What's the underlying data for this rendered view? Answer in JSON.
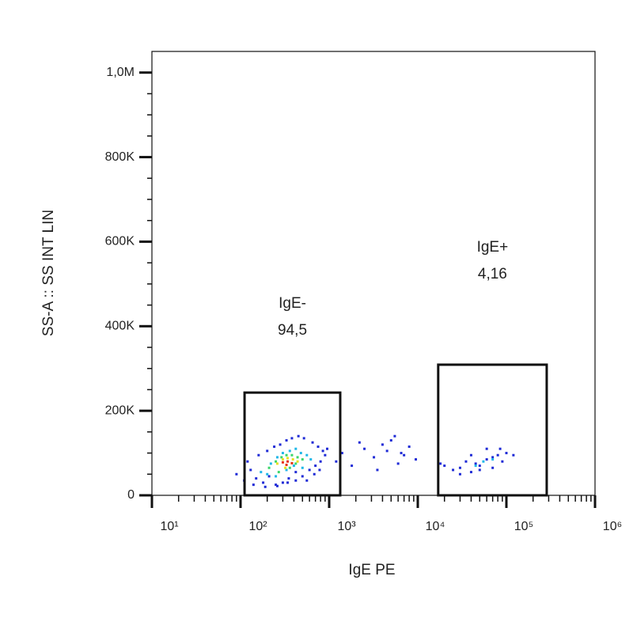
{
  "chart_data": {
    "type": "scatter",
    "xlabel": "IgE PE",
    "ylabel": "SS-A :: SS INT LIN",
    "xscale": "log",
    "xlim": [
      10,
      1000000
    ],
    "ylim": [
      0,
      1050000
    ],
    "xticks": [
      {
        "value": 10,
        "label": "10¹"
      },
      {
        "value": 100,
        "label": "10²"
      },
      {
        "value": 1000,
        "label": "10³"
      },
      {
        "value": 10000,
        "label": "10⁴"
      },
      {
        "value": 100000,
        "label": "10⁵"
      },
      {
        "value": 1000000,
        "label": "10⁶"
      }
    ],
    "yticks": [
      0,
      {
        "value": 200000,
        "label": "200K"
      },
      {
        "value": 400000,
        "label": "400K"
      },
      {
        "value": 600000,
        "label": "600K"
      },
      {
        "value": 800000,
        "label": "800K"
      },
      {
        "value": 1000000,
        "label": "1,0M"
      }
    ],
    "gates": [
      {
        "name": "IgE-",
        "value": 94.5,
        "value_label": "94,5",
        "x": [
          111,
          1333
        ],
        "y": [
          0,
          243000
        ]
      },
      {
        "name": "IgE+",
        "value": 4.16,
        "value_label": "4,16",
        "x": [
          17000,
          285000
        ],
        "y": [
          0,
          309000
        ]
      }
    ],
    "series": [
      {
        "color": "#1f2bd6",
        "x": [
          90,
          110,
          130,
          150,
          180,
          210,
          250,
          300,
          350,
          420,
          500,
          600,
          700,
          800,
          900,
          950,
          120,
          160,
          200,
          240,
          280,
          330,
          380,
          450,
          520,
          650,
          750,
          850,
          140,
          190,
          260,
          340,
          420,
          560,
          680,
          780,
          1400,
          1800,
          2500,
          3200,
          4000,
          5000,
          6500,
          8000,
          9500,
          3500,
          5500,
          7000,
          1200,
          2200,
          4500,
          6000,
          20000,
          25000,
          30000,
          35000,
          40000,
          45000,
          50000,
          60000,
          70000,
          80000,
          90000,
          100000,
          120000,
          30000,
          50000,
          70000,
          40000,
          60000,
          85000,
          18000
        ],
        "values": [
          50000,
          35000,
          60000,
          40000,
          30000,
          45000,
          25000,
          30000,
          40000,
          35000,
          45000,
          60000,
          70000,
          80000,
          95000,
          110000,
          80000,
          95000,
          105000,
          115000,
          120000,
          130000,
          135000,
          140000,
          135000,
          125000,
          115000,
          105000,
          25000,
          20000,
          22000,
          30000,
          55000,
          35000,
          50000,
          60000,
          100000,
          70000,
          110000,
          90000,
          120000,
          130000,
          100000,
          115000,
          85000,
          60000,
          140000,
          95000,
          80000,
          125000,
          105000,
          75000,
          70000,
          60000,
          65000,
          80000,
          55000,
          75000,
          70000,
          85000,
          90000,
          95000,
          80000,
          100000,
          95000,
          50000,
          60000,
          65000,
          95000,
          110000,
          110000,
          75000
        ]
      },
      {
        "color": "#1fb7e8",
        "x": [
          170,
          220,
          260,
          300,
          360,
          420,
          480,
          560,
          620,
          200,
          250,
          330,
          400,
          500,
          55000,
          70000,
          45000
        ],
        "values": [
          55000,
          75000,
          90000,
          100000,
          105000,
          110000,
          100000,
          95000,
          85000,
          50000,
          45000,
          60000,
          70000,
          65000,
          80000,
          85000,
          70000
        ]
      },
      {
        "color": "#3dd66b",
        "x": [
          210,
          250,
          290,
          330,
          380,
          440,
          500,
          270,
          360,
          420
        ],
        "values": [
          65000,
          80000,
          90000,
          95000,
          95000,
          90000,
          85000,
          55000,
          65000,
          75000
        ]
      },
      {
        "color": "#e8e020",
        "x": [
          260,
          300,
          340,
          390,
          440,
          320
        ],
        "values": [
          75000,
          85000,
          88000,
          85000,
          80000,
          65000
        ]
      },
      {
        "color": "#e83010",
        "x": [
          300,
          340,
          380,
          330
        ],
        "values": [
          78000,
          80000,
          76000,
          72000
        ]
      }
    ]
  }
}
